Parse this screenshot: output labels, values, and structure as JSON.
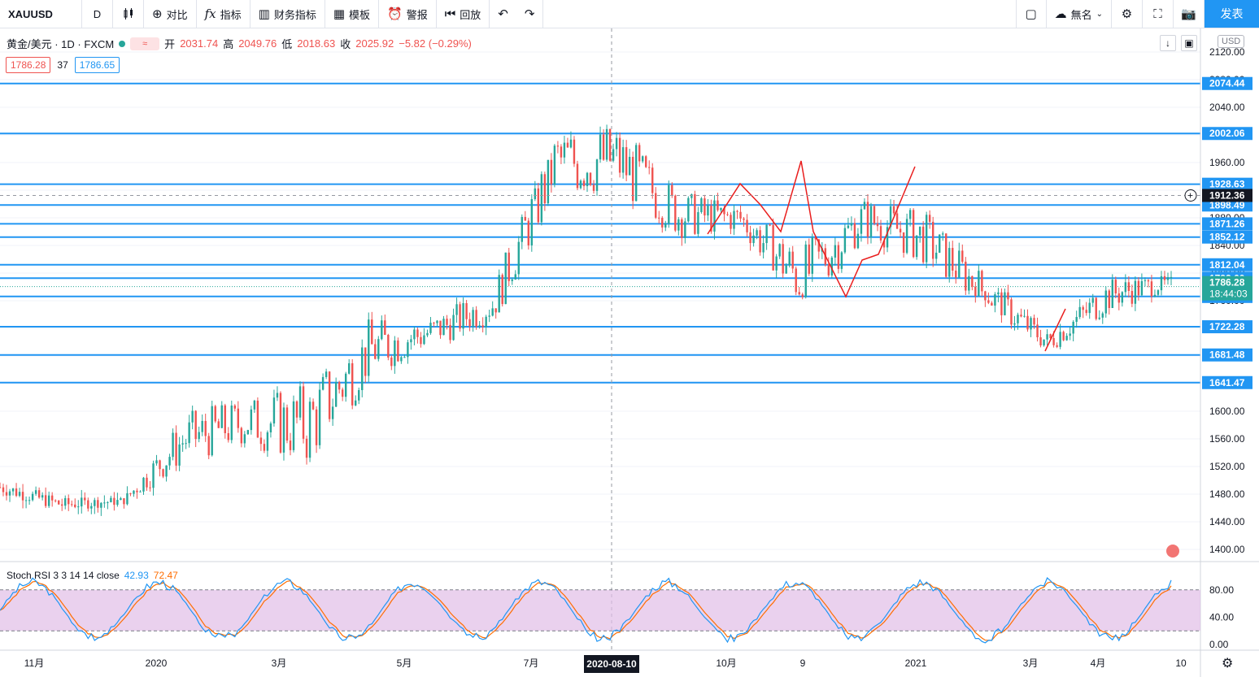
{
  "toolbar": {
    "symbol": "XAUUSD",
    "interval": "D",
    "compare_label": "对比",
    "indicators_label": "指标",
    "financials_label": "财务指标",
    "templates_label": "模板",
    "alert_label": "警报",
    "replay_label": "回放",
    "layout_name": "無名",
    "publish_label": "发表"
  },
  "legend": {
    "title": "黄金/美元 · 1D · FXCM",
    "open_k": "开",
    "open_v": "2031.74",
    "high_k": "高",
    "high_v": "2049.76",
    "low_k": "低",
    "low_v": "2018.63",
    "close_k": "收",
    "close_v": "2025.92",
    "change": "−5.82 (−0.29%)",
    "bid": "1786.28",
    "spread": "37",
    "ask": "1786.65",
    "currency": "USD"
  },
  "price_scale": {
    "ticks": [
      "2120.00",
      "2080.00",
      "2040.00",
      "2000.00",
      "1960.00",
      "1920.00",
      "1880.00",
      "1840.00",
      "1800.00",
      "1760.00",
      "1720.00",
      "1680.00",
      "1640.00",
      "1600.00",
      "1560.00",
      "1520.00",
      "1480.00",
      "1440.00",
      "1400.00"
    ],
    "levels": [
      {
        "label": "2074.44",
        "value": 2074.44
      },
      {
        "label": "2002.06",
        "value": 2002.06
      },
      {
        "label": "1928.63",
        "value": 1928.63
      },
      {
        "label": "1898.49",
        "value": 1898.49
      },
      {
        "label": "1871.26",
        "value": 1871.26
      },
      {
        "label": "1852.12",
        "value": 1852.12
      },
      {
        "label": "1812.04",
        "value": 1812.04
      },
      {
        "label": "1792.60",
        "value": 1792.6
      },
      {
        "label": "1766.11",
        "value": 1766.11
      },
      {
        "label": "1722.28",
        "value": 1722.28
      },
      {
        "label": "1681.48",
        "value": 1681.48
      },
      {
        "label": "1641.47",
        "value": 1641.47
      }
    ],
    "crosshair_label": "1912.36",
    "crosshair_value": 1912.36,
    "last_price_label": "1786.28",
    "countdown": "18:44:03",
    "last_price_value": 1786.28
  },
  "time_axis": {
    "labels": [
      "11月",
      "2020",
      "3月",
      "5月",
      "7月",
      "10月",
      "9",
      "2021",
      "3月",
      "4月",
      "10"
    ],
    "crosshair_date": "2020-08-10"
  },
  "stoch": {
    "label": "Stoch RSI 3 3 14 14 close",
    "k_value": "42.93",
    "d_value": "72.47",
    "ticks": [
      "80.00",
      "40.00",
      "0.00"
    ]
  },
  "colors": {
    "up": "#26a69a",
    "down": "#ef5350",
    "level_line": "#2196f3",
    "stoch_k": "#2196f3",
    "stoch_d": "#ff6d00",
    "stoch_band": "#e1bee7",
    "zigzag": "#e91e1e",
    "last_price_bg": "#26a69a"
  },
  "chart_data": {
    "type": "candlestick",
    "symbol": "XAUUSD",
    "title": "黄金/美元 · 1D · FXCM",
    "ylim": [
      1380,
      2130
    ],
    "x": [
      "2019-10",
      "2019-11",
      "2019-12",
      "2020-01",
      "2020-02",
      "2020-03",
      "2020-04",
      "2020-05",
      "2020-06",
      "2020-07",
      "2020-08",
      "2020-09",
      "2020-10",
      "2020-11",
      "2020-12",
      "2021-01",
      "2021-02",
      "2021-03",
      "2021-04",
      "2021-05"
    ],
    "close": [
      1490,
      1465,
      1470,
      1560,
      1585,
      1580,
      1690,
      1715,
      1755,
      1960,
      1965,
      1885,
      1880,
      1790,
      1880,
      1850,
      1770,
      1700,
      1770,
      1786
    ],
    "high": [
      1515,
      1485,
      1480,
      1610,
      1690,
      1705,
      1745,
      1765,
      1790,
      1985,
      2074,
      1990,
      1935,
      1965,
      1905,
      1955,
      1870,
      1740,
      1790,
      1798
    ],
    "low": [
      1470,
      1445,
      1455,
      1455,
      1550,
      1450,
      1565,
      1670,
      1680,
      1760,
      1860,
      1850,
      1850,
      1765,
      1780,
      1800,
      1760,
      1675,
      1680,
      1760
    ]
  }
}
